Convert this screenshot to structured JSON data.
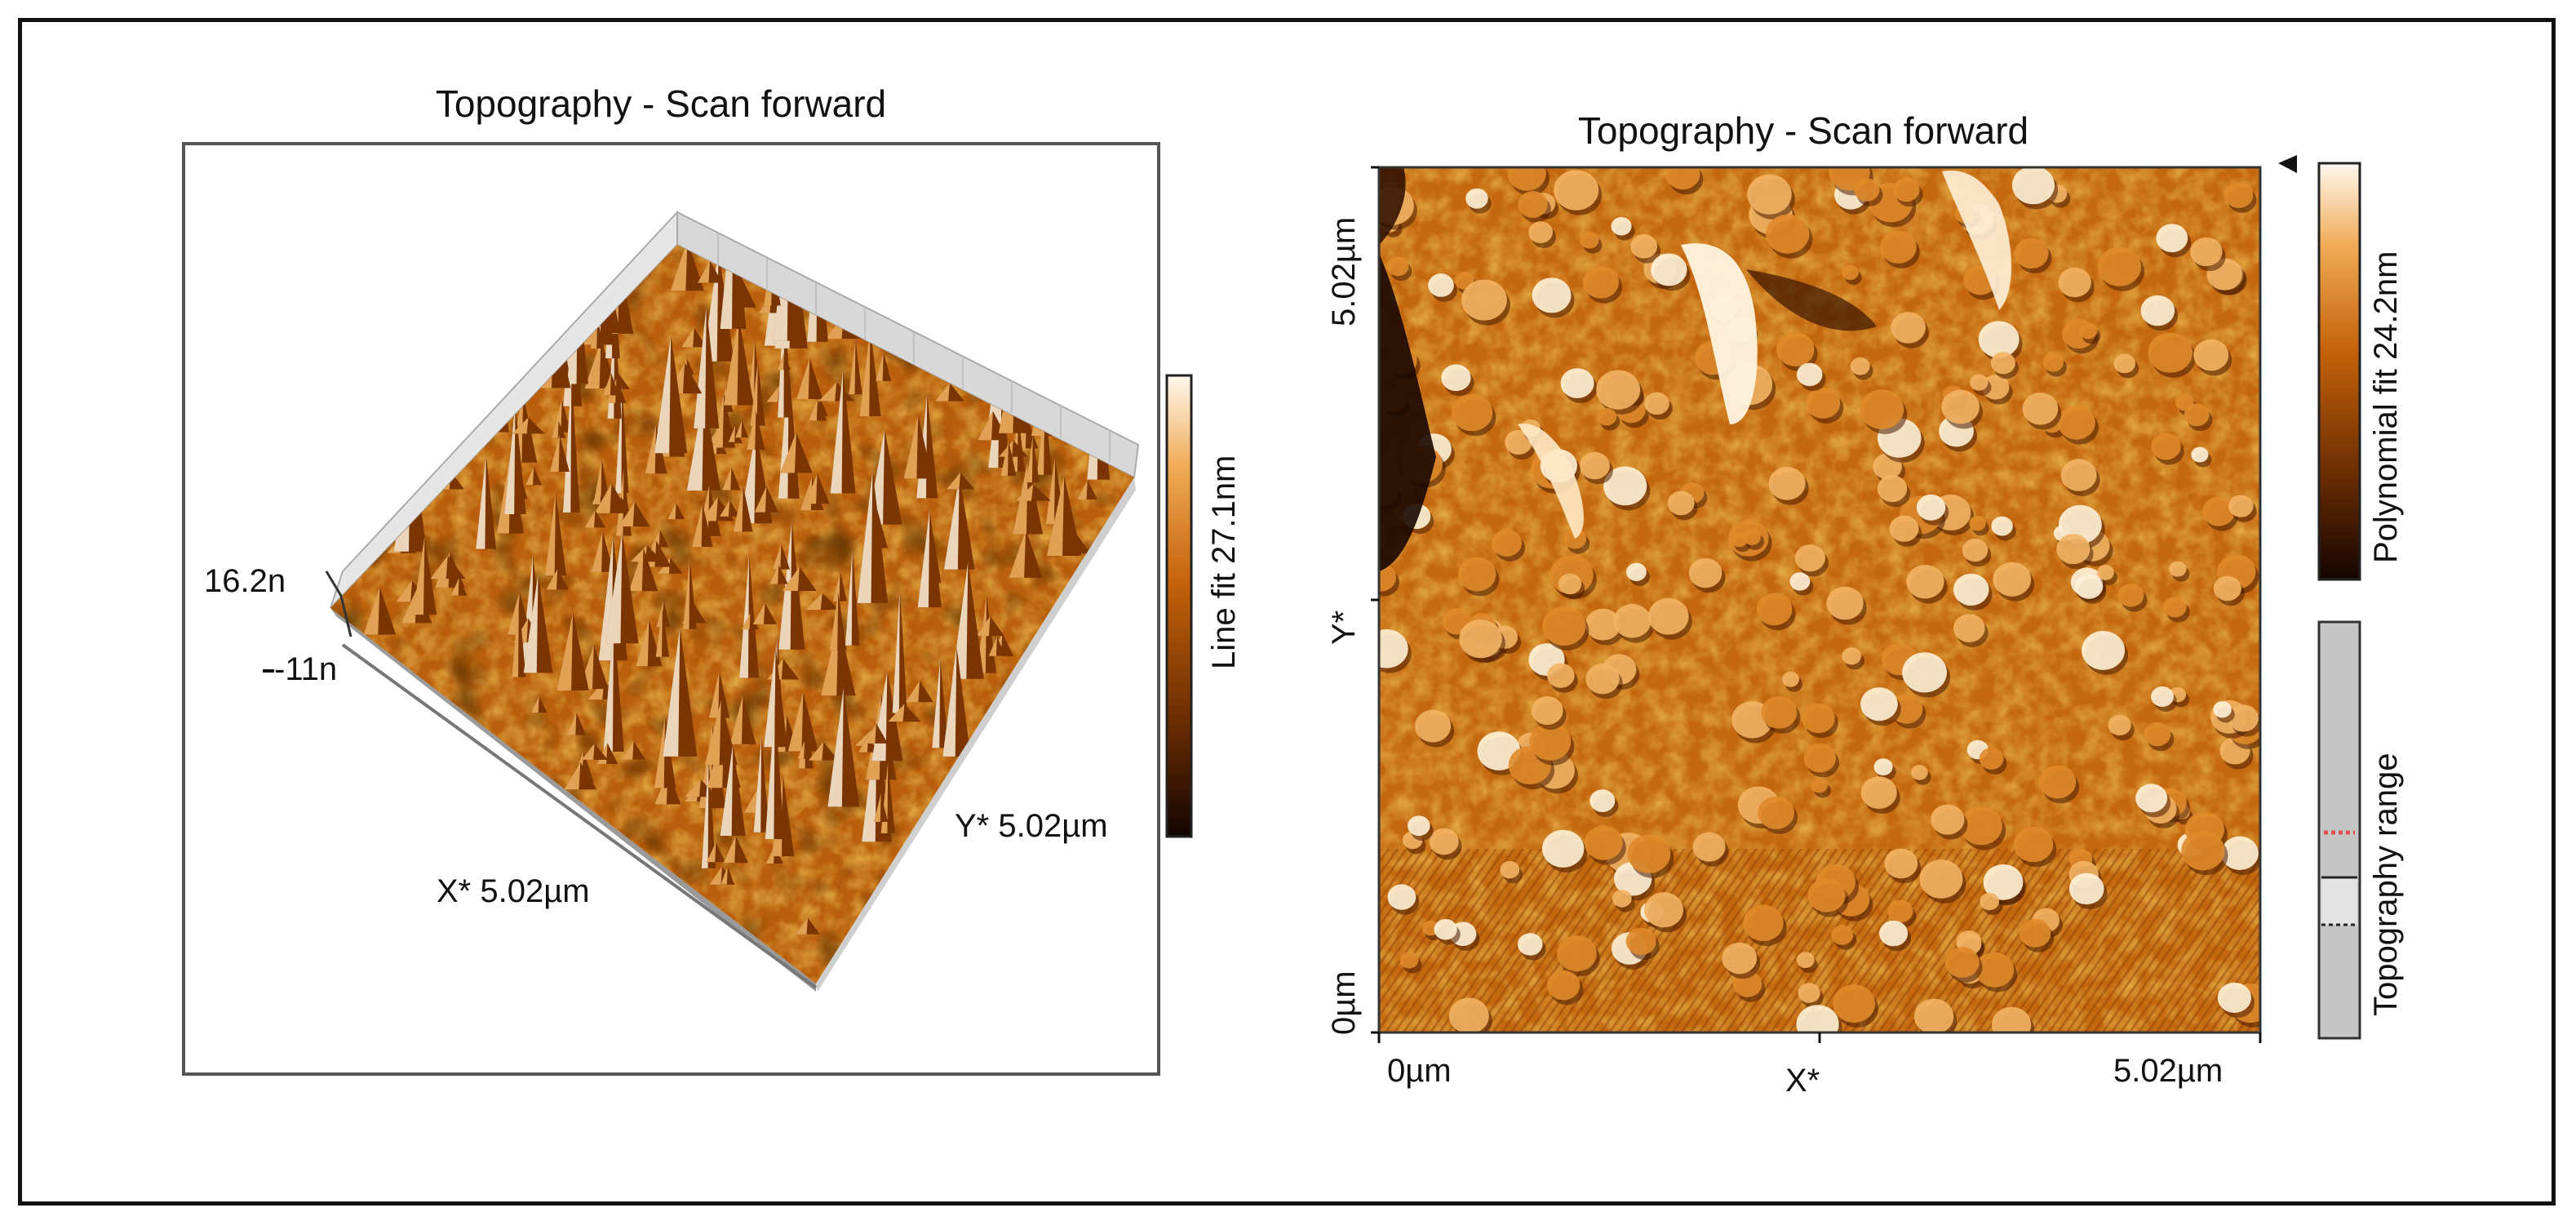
{
  "left_panel": {
    "title": "Topography - Scan forward",
    "z_max_label": "16.2n",
    "z_min_label": "-11n",
    "x_axis_label": "X* 5.02µm",
    "y_axis_label": "Y* 5.02µm",
    "colorbar_label": "Line fit 27.1nm"
  },
  "right_panel": {
    "title": "Topography - Scan forward",
    "y_top_tick": "5.02µm",
    "y_mid_label": "Y*",
    "y_bottom_tick": "0µm",
    "x_left_tick": "0µm",
    "x_mid_label": "X*",
    "x_right_tick": "5.02µm",
    "colorbar_label": "Polynomial fit 24.2nm",
    "range_bar_label": "Topography range"
  },
  "colors": {
    "orange_mid": "#c86a10",
    "orange_light": "#f3b464",
    "dark": "#1a0800",
    "highlight": "#fff2d8",
    "range_bar": "#c8c8c8",
    "range_marker": "#e05050"
  }
}
